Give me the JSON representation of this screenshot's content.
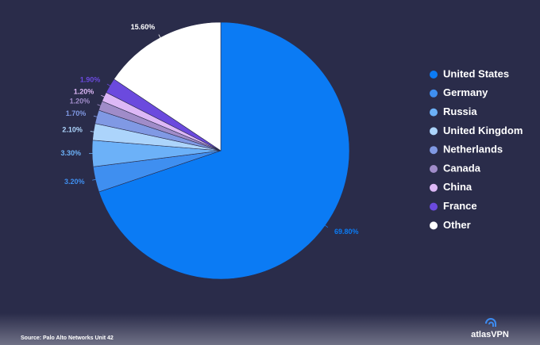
{
  "chart_data": {
    "type": "pie",
    "categories": [
      "United States",
      "Germany",
      "Russia",
      "United Kingdom",
      "Netherlands",
      "Canada",
      "China",
      "France",
      "Other"
    ],
    "values": [
      69.8,
      3.2,
      3.3,
      2.1,
      1.7,
      1.2,
      1.2,
      1.9,
      15.6
    ],
    "value_labels": [
      "69.80%",
      "3.20%",
      "3.30%",
      "2.10%",
      "1.70%",
      "1.20%",
      "1.20%",
      "1.90%",
      "15.60%"
    ],
    "colors": [
      "#0b7bf4",
      "#3f8ff0",
      "#6cb1f8",
      "#acd4fb",
      "#8099e4",
      "#a08cc9",
      "#ddb8f6",
      "#6b4ade",
      "#ffffff"
    ],
    "legend": "right",
    "source": "Source: Palo Alto Networks Unit 42",
    "logo": "atlasVPN"
  }
}
